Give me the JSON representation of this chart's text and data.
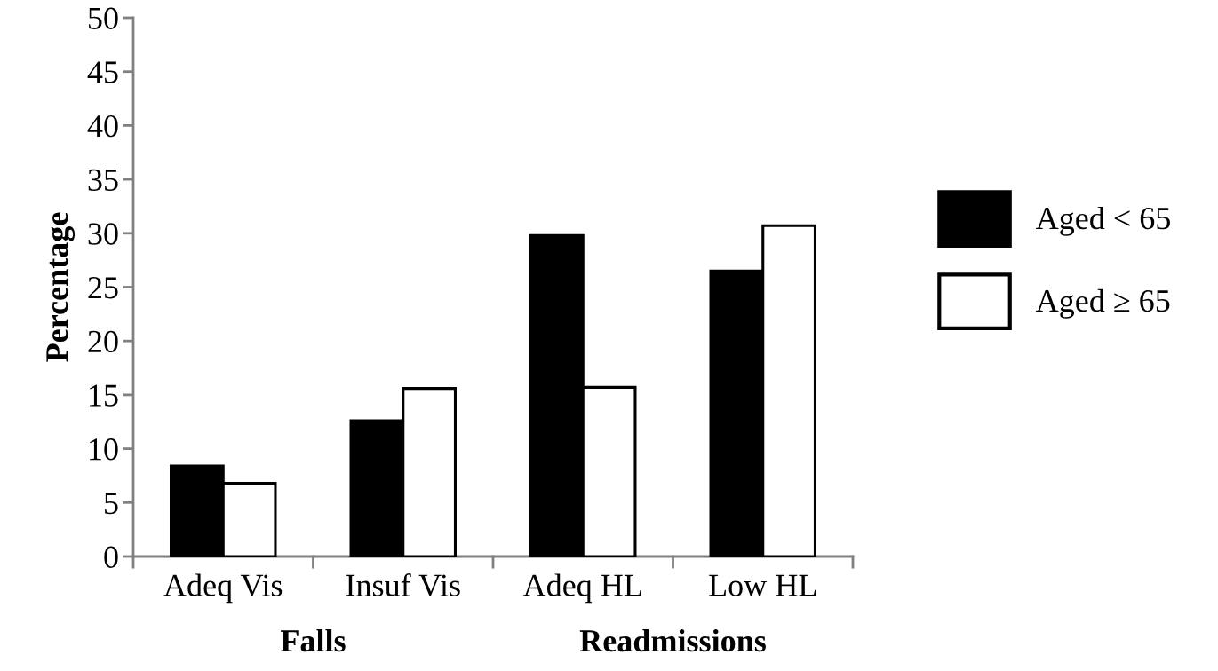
{
  "chart_data": {
    "type": "bar",
    "ylabel": "Percentage",
    "categories": [
      "Adeq Vis",
      "Insuf Vis",
      "Adeq HL",
      "Low HL"
    ],
    "series": [
      {
        "name": "Aged < 65",
        "color": "#000000",
        "values": [
          8.4,
          12.6,
          29.8,
          26.5
        ]
      },
      {
        "name": "Aged ≥ 65",
        "color": "#ffffff",
        "values": [
          6.8,
          15.6,
          15.7,
          30.7
        ]
      }
    ],
    "ylim": [
      0,
      50
    ],
    "yticks": [
      0,
      5,
      10,
      15,
      20,
      25,
      30,
      35,
      40,
      45,
      50
    ],
    "annotations": [
      "Falls",
      "Readmissions"
    ],
    "grid": false,
    "legend": "right"
  }
}
